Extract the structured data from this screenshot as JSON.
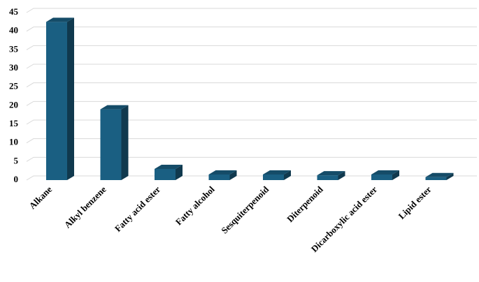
{
  "chart_data": {
    "type": "bar3d",
    "categories": [
      "Alkane",
      "Alkyl benzene",
      "Fatty acid ester",
      "Fatty alcohol",
      "Sesquiterpenoid",
      "Diterpenoid",
      "Dicarboxylic acid ester",
      "Lipid ester"
    ],
    "values": [
      42.5,
      19,
      3,
      1.5,
      1.5,
      1.3,
      1.5,
      0.8
    ],
    "color": "#1a5f82",
    "ylim": [
      0,
      45
    ],
    "yticks": [
      0,
      5,
      10,
      15,
      20,
      25,
      30,
      35,
      40,
      45
    ],
    "grid": true
  }
}
